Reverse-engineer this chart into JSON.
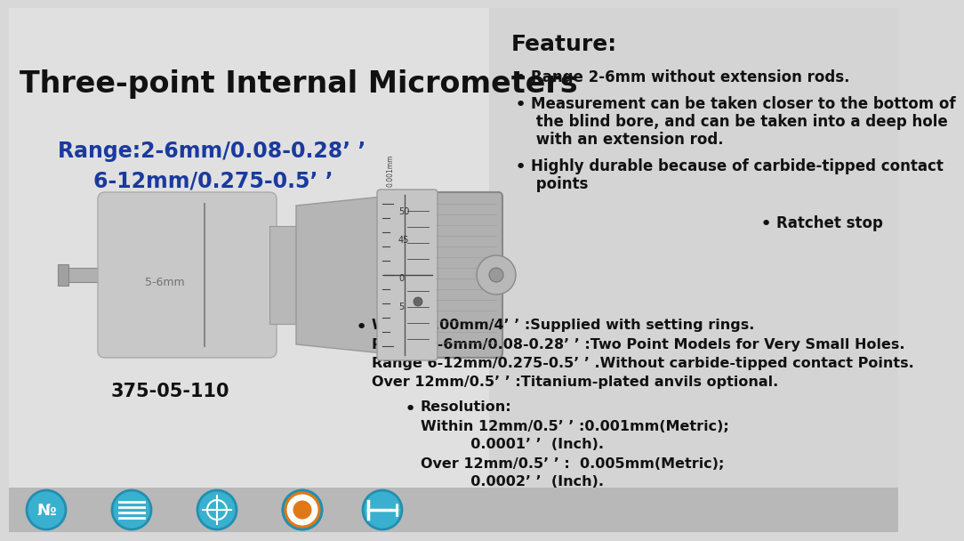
{
  "bg_color": "#d8d8d8",
  "title": "Three-point Internal Micrometers",
  "title_color": "#111111",
  "title_fontsize": 24,
  "range_text1": "Range:2-6mm/0.08-0.28’ ’",
  "range_text2": "6-12mm/0.275-0.5’ ’",
  "range_color": "#1a3a9e",
  "range_fontsize": 17,
  "part_number": "375-05-110",
  "part_number_fontsize": 15,
  "feature_title": "Feature:",
  "feature_title_fontsize": 18,
  "feature1": "Range 2-6mm without extension rods.",
  "feature2_line1": "Measurement can be taken closer to the bottom of",
  "feature2_line2": " the blind bore, and can be taken into a deep hole",
  "feature2_line3": " with an extension rod.",
  "feature3_line1": "Highly durable because of carbide-tipped contact",
  "feature3_line2": " points",
  "feature4": "Ratchet stop",
  "note_bullet": "Within 100mm/4’ ’ :Supplied with setting rings.",
  "note2": "Range 2-6mm/0.08-0.28’ ’ :Two Point Models for Very Small Holes.",
  "note3": "Range 6-12mm/0.275-0.5’ ’ .Without carbide-tipped contact Points.",
  "note4": "Over 12mm/0.5’ ’ :Titanium-plated anvils optional.",
  "res_bullet": "Resolution:",
  "res1": "Within 12mm/0.5’ ’ :0.001mm(Metric);",
  "res2": "          0.0001’ ’  (Inch).",
  "res3": "Over 12mm/0.5’ ’ :  0.005mm(Metric);",
  "res4": "          0.0002’ ’  (Inch).",
  "text_color": "#111111",
  "body_fontsize": 12,
  "body_bold": true,
  "icon_colors": [
    "#3ab0d0",
    "#3ab0d0",
    "#3ab0d0",
    "#e07818",
    "#3ab0d0"
  ],
  "icon_border": "#3ab0d0",
  "bar_color": "#b8b8b8"
}
